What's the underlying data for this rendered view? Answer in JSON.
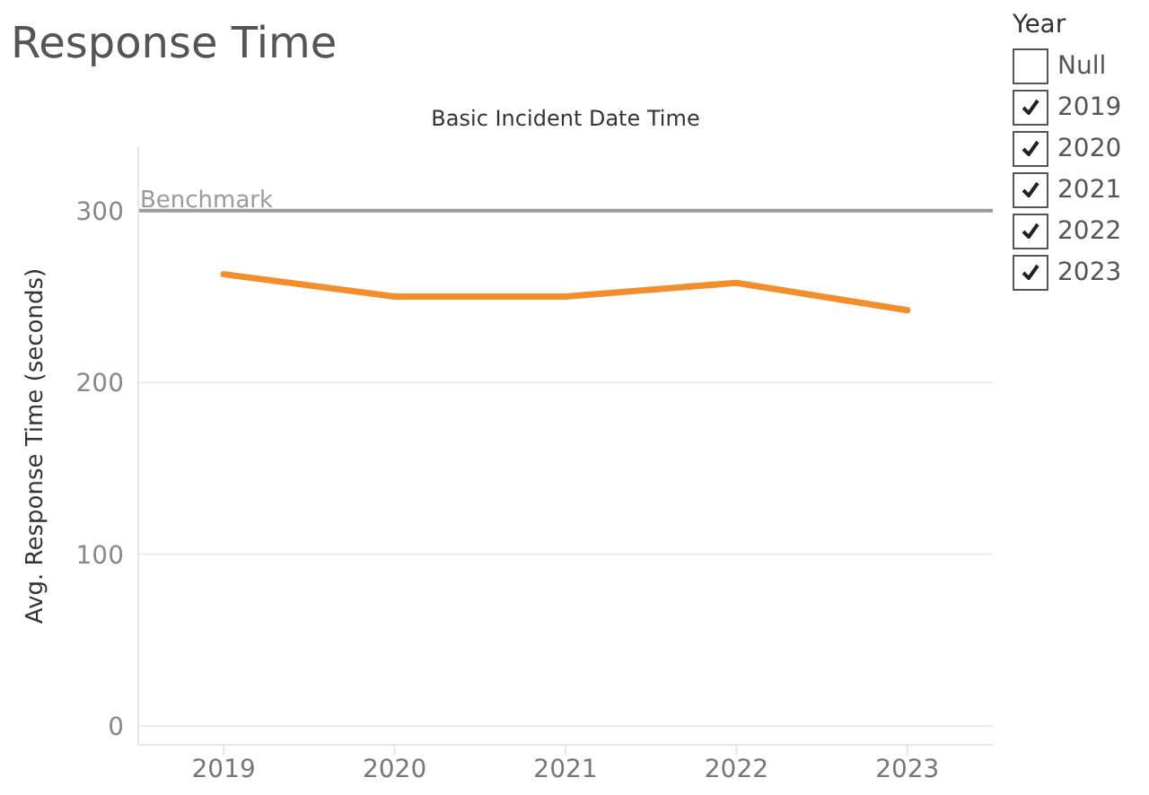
{
  "chart_data": {
    "type": "line",
    "title": "Response Time",
    "xlabel": "Basic Incident Date Time",
    "ylabel": "Avg. Response Time (seconds)",
    "categories": [
      "2019",
      "2020",
      "2021",
      "2022",
      "2023"
    ],
    "series": [
      {
        "color": "#f28e2b",
        "values": [
          263,
          250,
          250,
          258,
          242
        ]
      }
    ],
    "ylim": [
      -11,
      337
    ],
    "yticks": [
      0,
      100,
      200,
      300
    ],
    "grid": "y",
    "marker": "none",
    "line_style": "solid",
    "ref_lines": [
      {
        "axis": "y",
        "value": 300,
        "label": "Benchmark",
        "color": "#9a9a9a"
      }
    ],
    "legend_title": "Year",
    "annotations": [
      "Null",
      "2019",
      "2020",
      "2021",
      "2022",
      "2023"
    ]
  }
}
